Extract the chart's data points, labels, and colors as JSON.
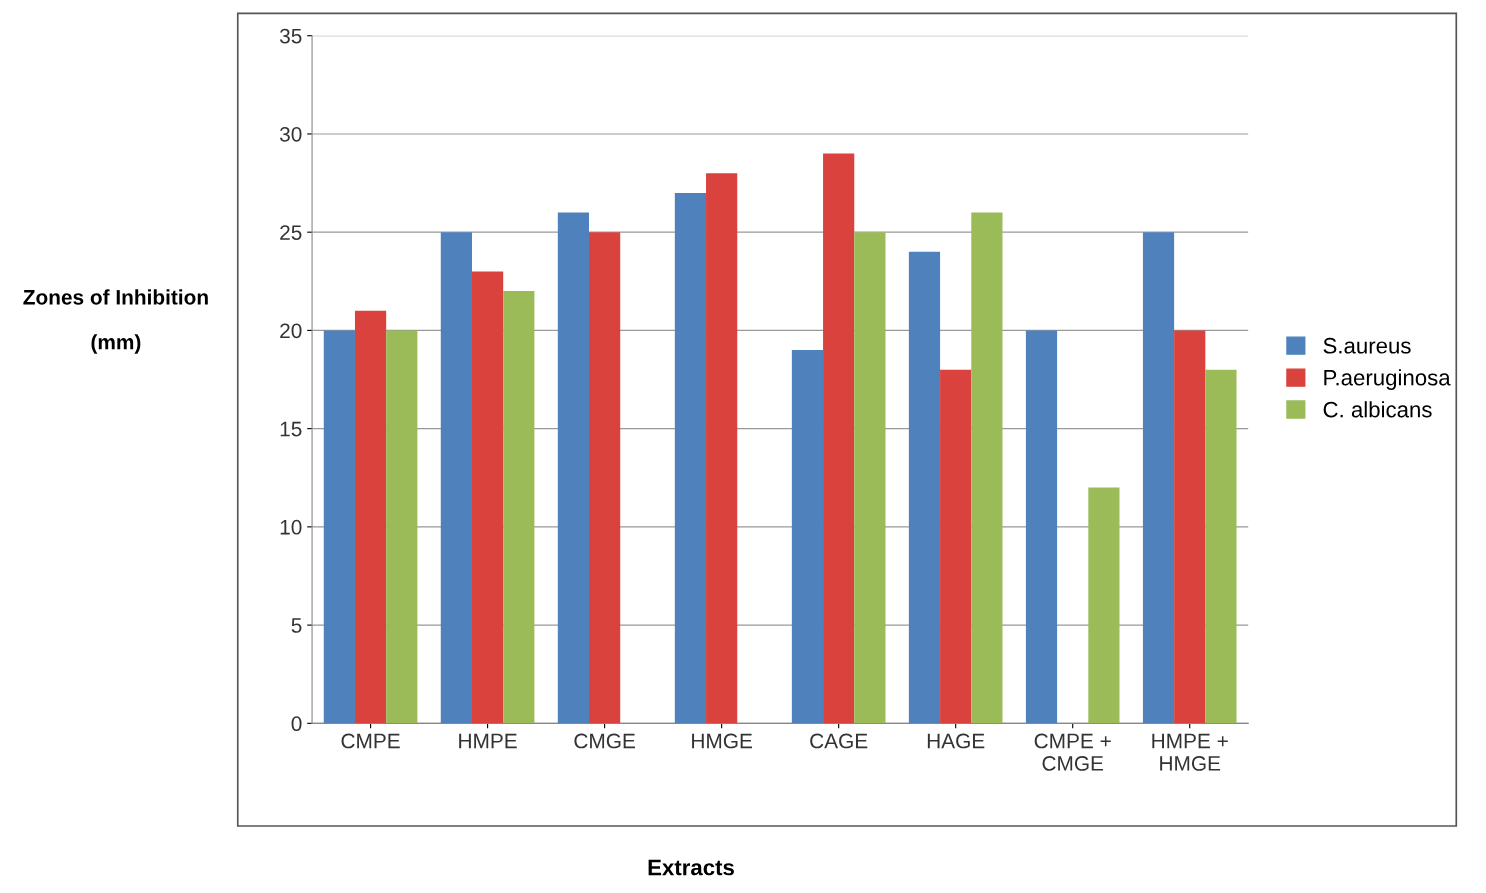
{
  "chart_data": {
    "type": "bar",
    "xlabel": "Extracts",
    "ylabel": "Zones of Inhibition\n\n(mm)",
    "categories": [
      "CMPE",
      "HMPE",
      "CMGE",
      "HMGE",
      "CAGE",
      "HAGE",
      "CMPE +\nCMGE",
      "HMPE +\nHMGE"
    ],
    "series": [
      {
        "name": "S.aureus",
        "color": "#4f81bd",
        "values": [
          20,
          25,
          26,
          27,
          19,
          24,
          20,
          25
        ]
      },
      {
        "name": "P.aeruginosa",
        "color": "#d9423d",
        "values": [
          21,
          23,
          25,
          28,
          29,
          18,
          null,
          20
        ]
      },
      {
        "name": "C. albicans",
        "color": "#9bbb59",
        "values": [
          20,
          22,
          null,
          null,
          25,
          26,
          12,
          18
        ]
      }
    ],
    "ylim": [
      0,
      35
    ],
    "yticks": [
      0,
      5,
      10,
      15,
      20,
      25,
      30,
      35
    ],
    "grid": "y",
    "legend": "right"
  }
}
